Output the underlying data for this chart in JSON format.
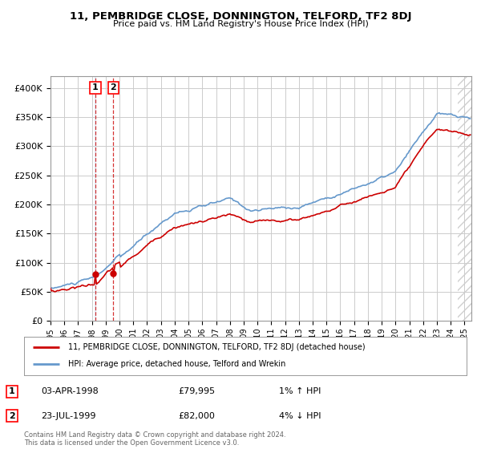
{
  "title": "11, PEMBRIDGE CLOSE, DONNINGTON, TELFORD, TF2 8DJ",
  "subtitle": "Price paid vs. HM Land Registry's House Price Index (HPI)",
  "ylabel_ticks": [
    "£0",
    "£50K",
    "£100K",
    "£150K",
    "£200K",
    "£250K",
    "£300K",
    "£350K",
    "£400K"
  ],
  "ytick_values": [
    0,
    50000,
    100000,
    150000,
    200000,
    250000,
    300000,
    350000,
    400000
  ],
  "ylim": [
    0,
    420000
  ],
  "xlim_start": 1995.0,
  "xlim_end": 2025.5,
  "hpi_color": "#6699cc",
  "price_color": "#cc0000",
  "sale1": {
    "date_num": 1998.25,
    "price": 79995,
    "label": "1",
    "date_str": "03-APR-1998",
    "price_str": "£79,995",
    "hpi_str": "1% ↑ HPI"
  },
  "sale2": {
    "date_num": 1999.55,
    "price": 82000,
    "label": "2",
    "date_str": "23-JUL-1999",
    "price_str": "£82,000",
    "hpi_str": "4% ↓ HPI"
  },
  "legend_label1": "11, PEMBRIDGE CLOSE, DONNINGTON, TELFORD, TF2 8DJ (detached house)",
  "legend_label2": "HPI: Average price, detached house, Telford and Wrekin",
  "footer": "Contains HM Land Registry data © Crown copyright and database right 2024.\nThis data is licensed under the Open Government Licence v3.0.",
  "bg_color": "#ffffff",
  "grid_color": "#cccccc",
  "xtick_years": [
    1995,
    1996,
    1997,
    1998,
    1999,
    2000,
    2001,
    2002,
    2003,
    2004,
    2005,
    2006,
    2007,
    2008,
    2009,
    2010,
    2011,
    2012,
    2013,
    2014,
    2015,
    2016,
    2017,
    2018,
    2019,
    2020,
    2021,
    2022,
    2023,
    2024,
    2025
  ],
  "hatch_start": 2024.5,
  "hatch_color": "#aaaaaa"
}
